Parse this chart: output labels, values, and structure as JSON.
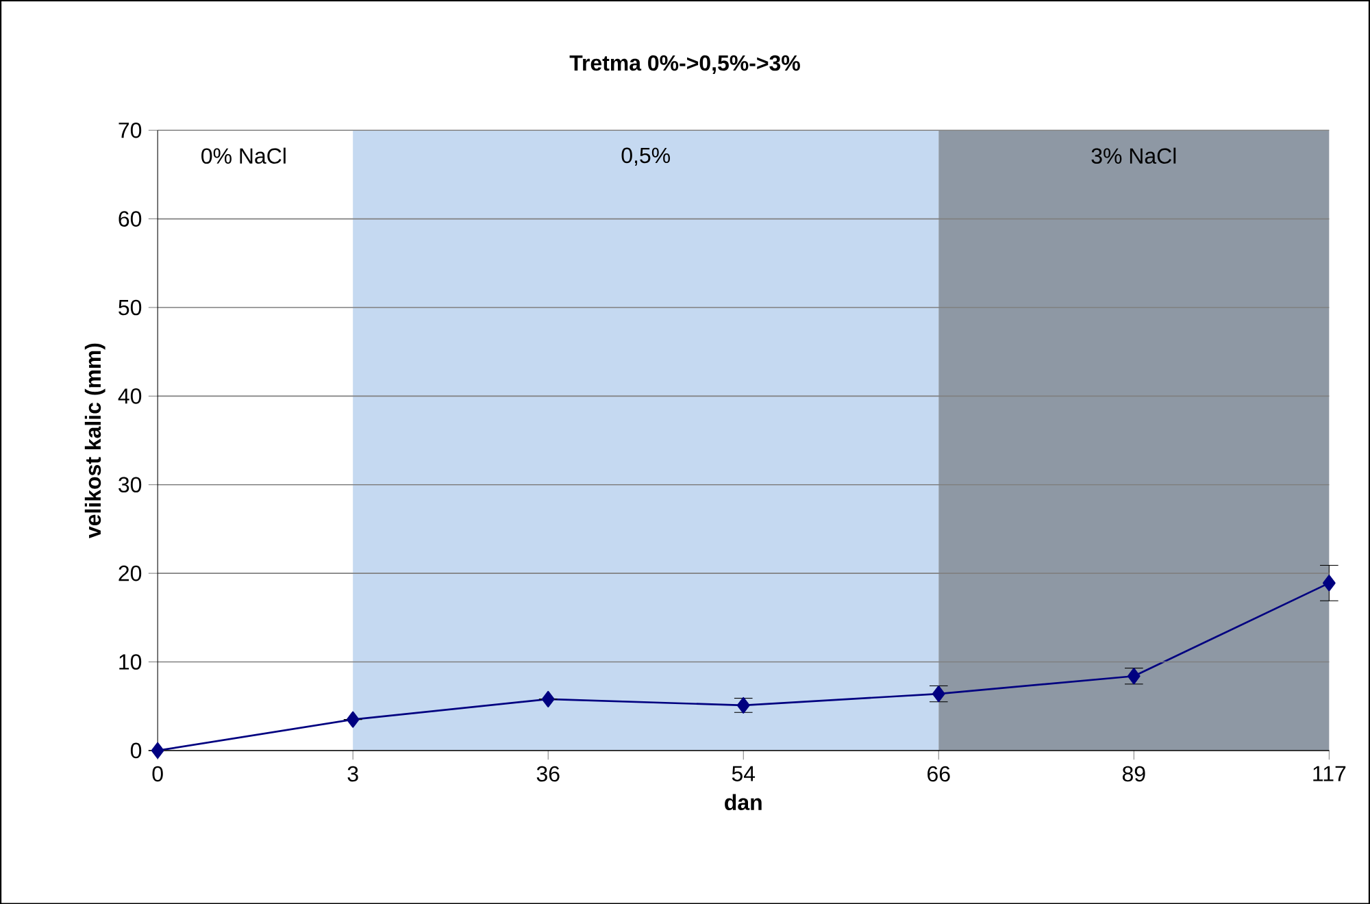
{
  "chart_data": {
    "type": "line",
    "title": "Tretma 0%->0,5%->3%",
    "xlabel": "dan",
    "ylabel": "velikost kalic (mm)",
    "categories": [
      "0",
      "3",
      "36",
      "54",
      "66",
      "89",
      "117"
    ],
    "series": [
      {
        "color": "#000080",
        "values": [
          0,
          3.5,
          5.8,
          5.1,
          6.4,
          8.4,
          18.9
        ],
        "errors": [
          null,
          null,
          null,
          0.8,
          0.9,
          0.9,
          2
        ]
      }
    ],
    "ylim": [
      0,
      70
    ],
    "yticks": [
      0,
      10,
      20,
      30,
      40,
      50,
      60,
      70
    ],
    "grid": "y",
    "marker": "diamond",
    "line_style": "solid",
    "annotations": [
      "0% NaCl"
    ],
    "bands": [
      {
        "axis": "x",
        "from": "3",
        "to": "66",
        "label": "0,5%",
        "color": "#c5d9f1"
      },
      {
        "axis": "x",
        "from": "66",
        "to": "117",
        "label": "3% NaCl",
        "color": "#8e98a4"
      }
    ]
  }
}
